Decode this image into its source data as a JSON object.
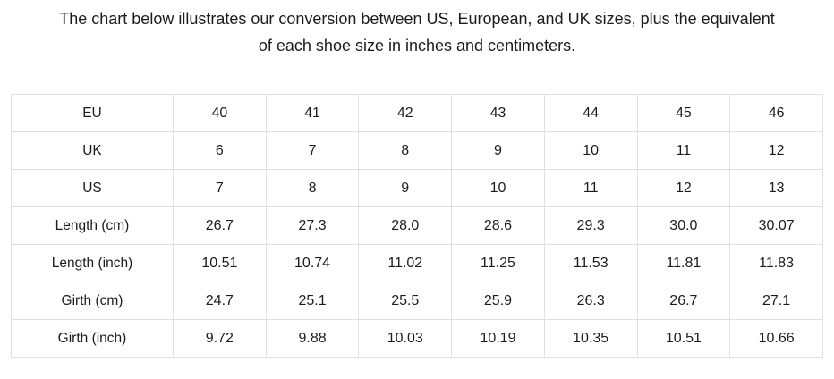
{
  "page": {
    "title_lines": [
      "The chart below illustrates our conversion between US, European, and UK sizes, plus the equivalent",
      "of each shoe size in inches and centimeters."
    ]
  },
  "colors": {
    "background": "#ffffff",
    "text": "#1c1c1c",
    "table_border": "#e0e0e0"
  },
  "chart_data": {
    "type": "table",
    "rows": [
      {
        "label": "EU",
        "values": [
          "40",
          "41",
          "42",
          "43",
          "44",
          "45",
          "46"
        ]
      },
      {
        "label": "UK",
        "values": [
          "6",
          "7",
          "8",
          "9",
          "10",
          "11",
          "12"
        ]
      },
      {
        "label": "US",
        "values": [
          "7",
          "8",
          "9",
          "10",
          "11",
          "12",
          "13"
        ]
      },
      {
        "label": "Length (cm)",
        "values": [
          "26.7",
          "27.3",
          "28.0",
          "28.6",
          "29.3",
          "30.0",
          "30.07"
        ]
      },
      {
        "label": "Length (inch)",
        "values": [
          "10.51",
          "10.74",
          "11.02",
          "11.25",
          "11.53",
          "11.81",
          "11.83"
        ]
      },
      {
        "label": "Girth (cm)",
        "values": [
          "24.7",
          "25.1",
          "25.5",
          "25.9",
          "26.3",
          "26.7",
          "27.1"
        ]
      },
      {
        "label": "Girth (inch)",
        "values": [
          "9.72",
          "9.88",
          "10.03",
          "10.19",
          "10.35",
          "10.51",
          "10.66"
        ]
      }
    ]
  }
}
